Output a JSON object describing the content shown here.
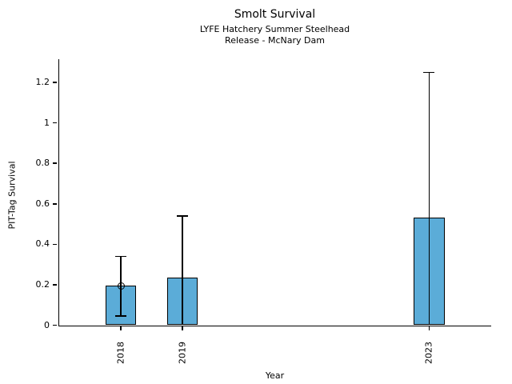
{
  "chart_data": {
    "type": "bar",
    "title": "Smolt Survival",
    "subtitle": [
      "LYFE Hatchery Summer Steelhead",
      "Release - McNary Dam"
    ],
    "xlabel": "Year",
    "ylabel": "PIT-Tag Survival",
    "categories": [
      "2018",
      "2019",
      "2023"
    ],
    "x_values": [
      2018,
      2019,
      2023
    ],
    "series": [
      {
        "name": "PIT-Tag Survival",
        "values": [
          0.195,
          0.235,
          0.533
        ],
        "error_low": [
          0.045,
          0,
          0
        ],
        "error_high": [
          0.34,
          0.54,
          1.25
        ]
      }
    ],
    "point_markers": [
      {
        "x": 2018,
        "y": 0.195,
        "marker": "open-circle"
      }
    ],
    "xlim": [
      2017,
      2024
    ],
    "ylim": [
      0,
      1.315
    ],
    "yticks": [
      0,
      0.2,
      0.4,
      0.6,
      0.8,
      1,
      1.2
    ],
    "ytick_labels": [
      "0",
      "0.2",
      "0.4",
      "0.6",
      "0.8",
      "1",
      "1.2"
    ],
    "xtick_labels": [
      "2018",
      "2019",
      "2023"
    ],
    "bar_width_years": 0.5,
    "grid": false,
    "legend": false,
    "colors": {
      "bar_fill": "#5bacd8",
      "bar_edge": "#000000",
      "errorbar": "#000000",
      "text": "#000000",
      "background": "#ffffff"
    }
  }
}
